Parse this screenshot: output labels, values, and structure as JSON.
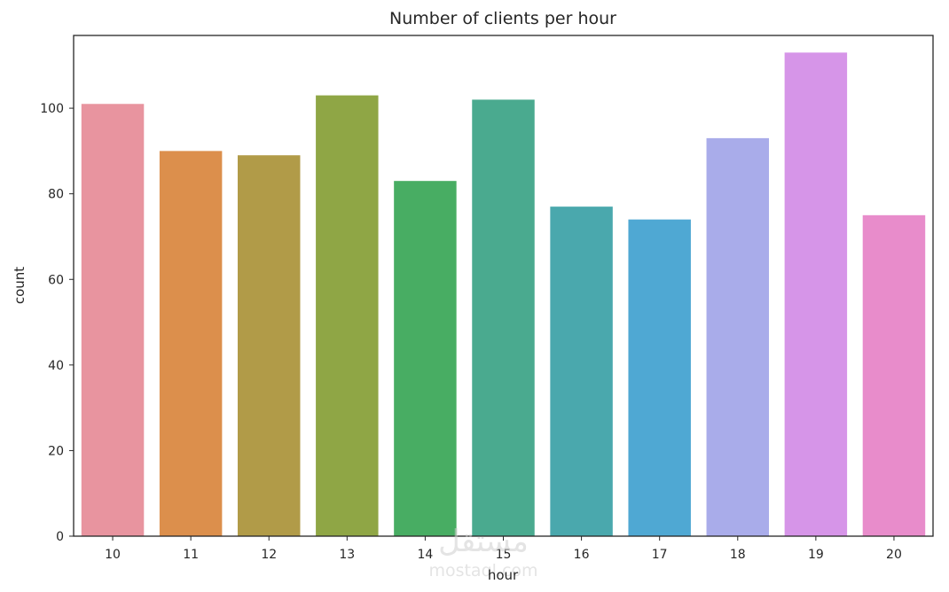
{
  "chart_data": {
    "type": "bar",
    "title": "Number of clients per hour",
    "xlabel": "hour",
    "ylabel": "count",
    "categories": [
      "10",
      "11",
      "12",
      "13",
      "14",
      "15",
      "16",
      "17",
      "18",
      "19",
      "20"
    ],
    "values": [
      101,
      90,
      89,
      103,
      83,
      102,
      77,
      74,
      93,
      113,
      75
    ],
    "colors": [
      "#e8949f",
      "#dc8f4c",
      "#b19b48",
      "#8fa645",
      "#48ad63",
      "#4aaa8f",
      "#4aa8ad",
      "#4fa8d3",
      "#a9acea",
      "#d695e8",
      "#e88ccb"
    ],
    "ylim": [
      0,
      117
    ],
    "yticks": [
      0,
      20,
      40,
      60,
      80,
      100
    ],
    "grid": false,
    "legend": "none"
  },
  "watermark": {
    "logo_text": "مستقل",
    "site_text": "mostaql.com"
  }
}
